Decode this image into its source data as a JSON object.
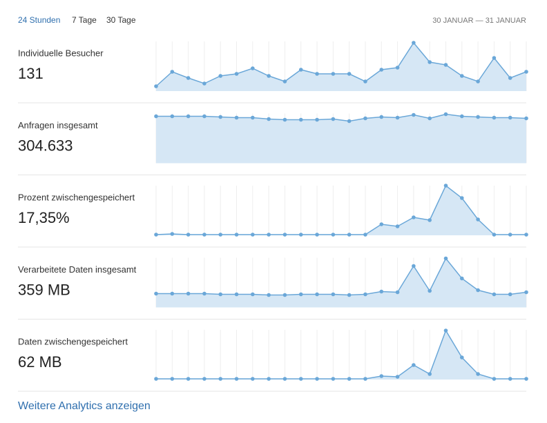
{
  "tabs": [
    "24 Stunden",
    "7 Tage",
    "30 Tage"
  ],
  "date_range": "30 JANUAR — 31 JANUAR",
  "metrics": [
    {
      "label": "Individuelle Besucher",
      "value": "131",
      "series": [
        7,
        28,
        19,
        11,
        22,
        25,
        33,
        22,
        14,
        31,
        25,
        25,
        25,
        14,
        31,
        34,
        70,
        42,
        38,
        22,
        14,
        48,
        19,
        28
      ]
    },
    {
      "label": "Anfragen insgesamt",
      "value": "304.633",
      "series": [
        68,
        68,
        68,
        68,
        67,
        66,
        66,
        64,
        63,
        63,
        63,
        64,
        61,
        65,
        67,
        66,
        70,
        65,
        71,
        68,
        67,
        66,
        66,
        65
      ]
    },
    {
      "label": "Prozent zwischengespeichert",
      "value": "17,35%",
      "series": [
        1,
        2,
        1,
        1,
        1,
        1,
        1,
        1,
        1,
        1,
        1,
        1,
        1,
        1,
        16,
        13,
        26,
        22,
        72,
        54,
        23,
        1,
        1,
        1
      ]
    },
    {
      "label": "Verarbeitete Daten insgesamt",
      "value": "359 MB",
      "series": [
        20,
        20,
        20,
        20,
        19,
        19,
        19,
        18,
        18,
        19,
        19,
        19,
        18,
        19,
        23,
        22,
        60,
        24,
        71,
        42,
        25,
        19,
        19,
        22
      ]
    },
    {
      "label": "Daten zwischengespeichert",
      "value": "62 MB",
      "series": [
        1,
        1,
        1,
        1,
        1,
        1,
        1,
        1,
        1,
        1,
        1,
        1,
        1,
        1,
        5,
        4,
        21,
        8,
        71,
        32,
        8,
        1,
        1,
        1
      ]
    }
  ],
  "link": "Weitere Analytics anzeigen"
}
